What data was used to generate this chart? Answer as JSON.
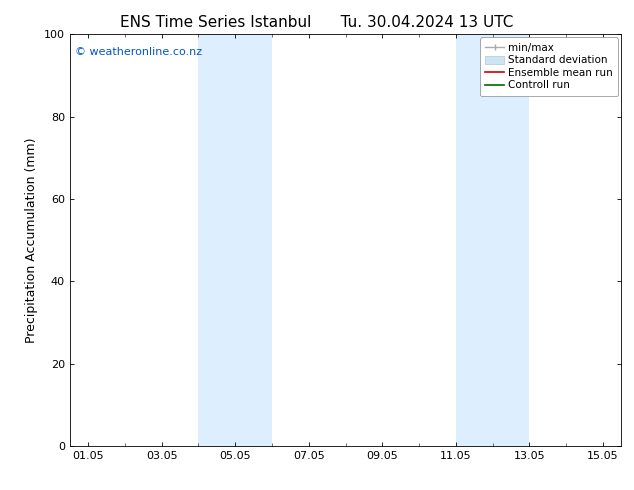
{
  "title_left": "ENS Time Series Istanbul",
  "title_right": "Tu. 30.04.2024 13 UTC",
  "ylabel": "Precipitation Accumulation (mm)",
  "ylim": [
    0,
    100
  ],
  "yticks": [
    0,
    20,
    40,
    60,
    80,
    100
  ],
  "xstart": "2024-05-01",
  "xend": "2024-05-16",
  "xtick_labels": [
    "01.05",
    "03.05",
    "05.05",
    "07.05",
    "09.05",
    "11.05",
    "13.05",
    "15.05"
  ],
  "xtick_days": [
    1,
    3,
    5,
    7,
    9,
    11,
    13,
    15
  ],
  "shaded_regions": [
    {
      "day_start": 4.0,
      "day_end": 6.0
    },
    {
      "day_start": 11.0,
      "day_end": 13.0
    }
  ],
  "shaded_color": "#ddeeff",
  "watermark_text": "© weatheronline.co.nz",
  "watermark_color": "#0055cc",
  "minmax_color": "#aaaaaa",
  "stddev_color": "#cce5f5",
  "ensemble_color": "#cc0000",
  "control_color": "#006600",
  "background_color": "#ffffff",
  "title_fontsize": 11,
  "axis_fontsize": 9,
  "tick_fontsize": 8,
  "legend_fontsize": 7.5
}
